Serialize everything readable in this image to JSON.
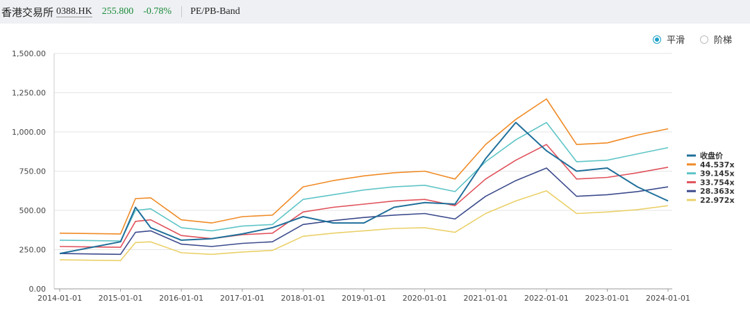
{
  "header": {
    "name": "香港交易所",
    "code": "0388.HK",
    "price": "255.800",
    "change": "-0.78%",
    "mode": "PE/PB-Band"
  },
  "toggles": [
    {
      "label": "平滑",
      "selected": true
    },
    {
      "label": "阶梯",
      "selected": false
    }
  ],
  "colors": {
    "close": "#1f6f9a",
    "b1": "#f08a24",
    "b2": "#5ec4c6",
    "b3": "#e0505a",
    "b4": "#3b4a8c",
    "b5": "#ead068",
    "accent": "#1aa0c8",
    "up": "#1a8a3a"
  },
  "chart_data": {
    "type": "line",
    "ylim": [
      0,
      1500
    ],
    "yticks": [
      "1,500.00",
      "1,250.00",
      "1,000.00",
      "750.00",
      "500.00",
      "250.00",
      "0.00"
    ],
    "xticks": [
      "2014-01-01",
      "2015-01-01",
      "2016-01-01",
      "2017-01-01",
      "2018-01-01",
      "2019-01-01",
      "2020-01-01",
      "2021-01-01",
      "2022-01-01",
      "2023-01-01",
      "2024-01-01"
    ],
    "x": [
      "2014-01",
      "2015-01",
      "2015-04",
      "2015-07",
      "2016-01",
      "2016-07",
      "2017-01",
      "2017-07",
      "2018-01",
      "2018-07",
      "2019-01",
      "2019-07",
      "2020-01",
      "2020-07",
      "2021-01",
      "2021-07",
      "2022-01",
      "2022-07",
      "2023-01",
      "2023-07",
      "2024-01"
    ],
    "series": [
      {
        "name": "收盘价",
        "values": [
          225,
          300,
          520,
          390,
          310,
          320,
          350,
          390,
          460,
          420,
          420,
          520,
          550,
          540,
          830,
          1060,
          880,
          750,
          770,
          650,
          560
        ]
      },
      {
        "name": "44.537x",
        "values": [
          355,
          350,
          575,
          580,
          440,
          420,
          460,
          470,
          650,
          690,
          720,
          740,
          750,
          700,
          920,
          1080,
          1210,
          920,
          930,
          980,
          1020
        ]
      },
      {
        "name": "39.145x",
        "values": [
          310,
          305,
          500,
          510,
          390,
          370,
          400,
          410,
          570,
          600,
          630,
          650,
          660,
          620,
          810,
          950,
          1060,
          810,
          820,
          860,
          900
        ]
      },
      {
        "name": "33.754x",
        "values": [
          270,
          265,
          430,
          440,
          340,
          320,
          345,
          355,
          490,
          520,
          540,
          560,
          570,
          530,
          700,
          820,
          920,
          700,
          710,
          740,
          775
        ]
      },
      {
        "name": "28.363x",
        "values": [
          225,
          220,
          360,
          370,
          285,
          270,
          290,
          300,
          410,
          435,
          455,
          470,
          480,
          445,
          590,
          690,
          770,
          590,
          600,
          620,
          650
        ]
      },
      {
        "name": "22.972x",
        "values": [
          185,
          180,
          295,
          300,
          230,
          220,
          235,
          245,
          335,
          355,
          370,
          385,
          390,
          360,
          480,
          560,
          625,
          480,
          490,
          505,
          530
        ]
      }
    ]
  }
}
